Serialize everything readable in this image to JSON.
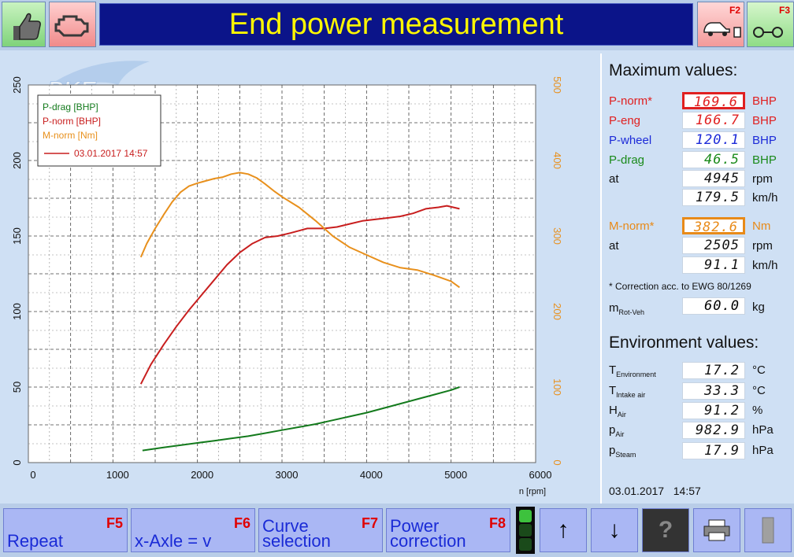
{
  "header": {
    "title": "End power measurement",
    "btn_f2_key": "F2",
    "btn_f3_key": "F3"
  },
  "chart_data": {
    "type": "line",
    "xlabel": "n [rpm]",
    "xlim": [
      0,
      6000
    ],
    "xticks": [
      0,
      1000,
      2000,
      3000,
      4000,
      5000,
      6000
    ],
    "ylim_left": [
      0,
      250
    ],
    "yticks_left": [
      0,
      50,
      100,
      150,
      200,
      250
    ],
    "ylim_right": [
      0,
      500
    ],
    "yticks_right": [
      0,
      100,
      200,
      300,
      400,
      500
    ],
    "legend": [
      "P-drag [BHP]",
      "P-norm [BHP]",
      "M-norm [Nm]"
    ],
    "legend_date": "03.01.2017 14:57",
    "legend_placement": "top-left",
    "grid": true,
    "series": [
      {
        "name": "P-drag [BHP]",
        "axis": "left",
        "color": "#137a1c",
        "x": [
          1350,
          1600,
          1800,
          2000,
          2200,
          2400,
          2600,
          2800,
          3000,
          3200,
          3400,
          3600,
          3800,
          4000,
          4200,
          4400,
          4600,
          4800,
          5000,
          5100
        ],
        "y": [
          8,
          10,
          11.5,
          13,
          14.5,
          16,
          17.5,
          19.5,
          21.5,
          23.5,
          25.5,
          28,
          30.5,
          33,
          36,
          39,
          42,
          45,
          48,
          50
        ]
      },
      {
        "name": "P-norm [BHP]",
        "axis": "left",
        "color": "#c81e1e",
        "x": [
          1330,
          1450,
          1600,
          1750,
          1900,
          2050,
          2200,
          2350,
          2500,
          2650,
          2800,
          2950,
          3100,
          3300,
          3500,
          3650,
          3800,
          3950,
          4100,
          4250,
          4400,
          4550,
          4700,
          4850,
          4950,
          5100
        ],
        "y": [
          52,
          65,
          78,
          90,
          101,
          111,
          121,
          131,
          139,
          145,
          149,
          150,
          152,
          155,
          155,
          156,
          158,
          160,
          161,
          162,
          163,
          165,
          168,
          169,
          170,
          168
        ]
      },
      {
        "name": "M-norm [Nm]",
        "axis": "right",
        "color": "#e8901c",
        "x": [
          1330,
          1400,
          1500,
          1600,
          1700,
          1800,
          1900,
          2000,
          2100,
          2200,
          2300,
          2400,
          2500,
          2600,
          2700,
          2800,
          2900,
          3000,
          3200,
          3400,
          3600,
          3800,
          4000,
          4200,
          4400,
          4600,
          4800,
          5000,
          5100
        ],
        "y": [
          272,
          290,
          310,
          328,
          345,
          358,
          366,
          370,
          373,
          376,
          378,
          382,
          384,
          382,
          377,
          369,
          360,
          352,
          338,
          320,
          300,
          285,
          275,
          265,
          258,
          255,
          248,
          240,
          232
        ]
      }
    ]
  },
  "max_values": {
    "title": "Maximum values:",
    "rows": [
      {
        "label": "P-norm*",
        "value": "169.6",
        "unit": "BHP",
        "color": "#e02020"
      },
      {
        "label": "P-eng",
        "value": "166.7",
        "unit": "BHP",
        "color": "#e02020"
      },
      {
        "label": "P-wheel",
        "value": "120.1",
        "unit": "BHP",
        "color": "#1c2ad8"
      },
      {
        "label": "P-drag",
        "value": "46.5",
        "unit": "BHP",
        "color": "#1a8a1a"
      },
      {
        "label": "at",
        "value": "4945",
        "unit": "rpm",
        "color": "#111111"
      },
      {
        "label": "",
        "value": "179.5",
        "unit": "km/h",
        "color": "#111111"
      }
    ],
    "torque_rows": [
      {
        "label": "M-norm*",
        "value": "382.6",
        "unit": "Nm",
        "color": "#e88a18"
      },
      {
        "label": "at",
        "value": "2505",
        "unit": "rpm",
        "color": "#111111"
      },
      {
        "label": "",
        "value": "91.1",
        "unit": "km/h",
        "color": "#111111"
      }
    ],
    "correction_note": "* Correction acc. to EWG 80/1269",
    "mrot_label": "m",
    "mrot_sub": "Rot-Veh",
    "mrot_value": "60.0",
    "mrot_unit": "kg"
  },
  "environment": {
    "title": "Environment values:",
    "rows": [
      {
        "label": "T",
        "sub": "Environment",
        "value": "17.2",
        "unit": "°C"
      },
      {
        "label": "T",
        "sub": "Intake air",
        "value": "33.3",
        "unit": "°C"
      },
      {
        "label": "H",
        "sub": "Air",
        "value": "91.2",
        "unit": "%"
      },
      {
        "label": "p",
        "sub": "Air",
        "value": "982.9",
        "unit": "hPa"
      },
      {
        "label": "p",
        "sub": "Steam",
        "value": "17.9",
        "unit": "hPa"
      }
    ],
    "date": "03.01.2017",
    "time": "14:57"
  },
  "footer": {
    "buttons": [
      {
        "label": "Repeat",
        "key": "F5"
      },
      {
        "label": "x-Axle = v",
        "key": "F6"
      },
      {
        "label": "Curve selection",
        "key": "F7"
      },
      {
        "label": "Power correction",
        "key": "F8"
      }
    ],
    "up_icon": "up-arrow-icon",
    "down_icon": "down-arrow-icon",
    "help_icon": "help-icon",
    "print_icon": "printer-icon",
    "exit_icon": "exit-icon"
  }
}
